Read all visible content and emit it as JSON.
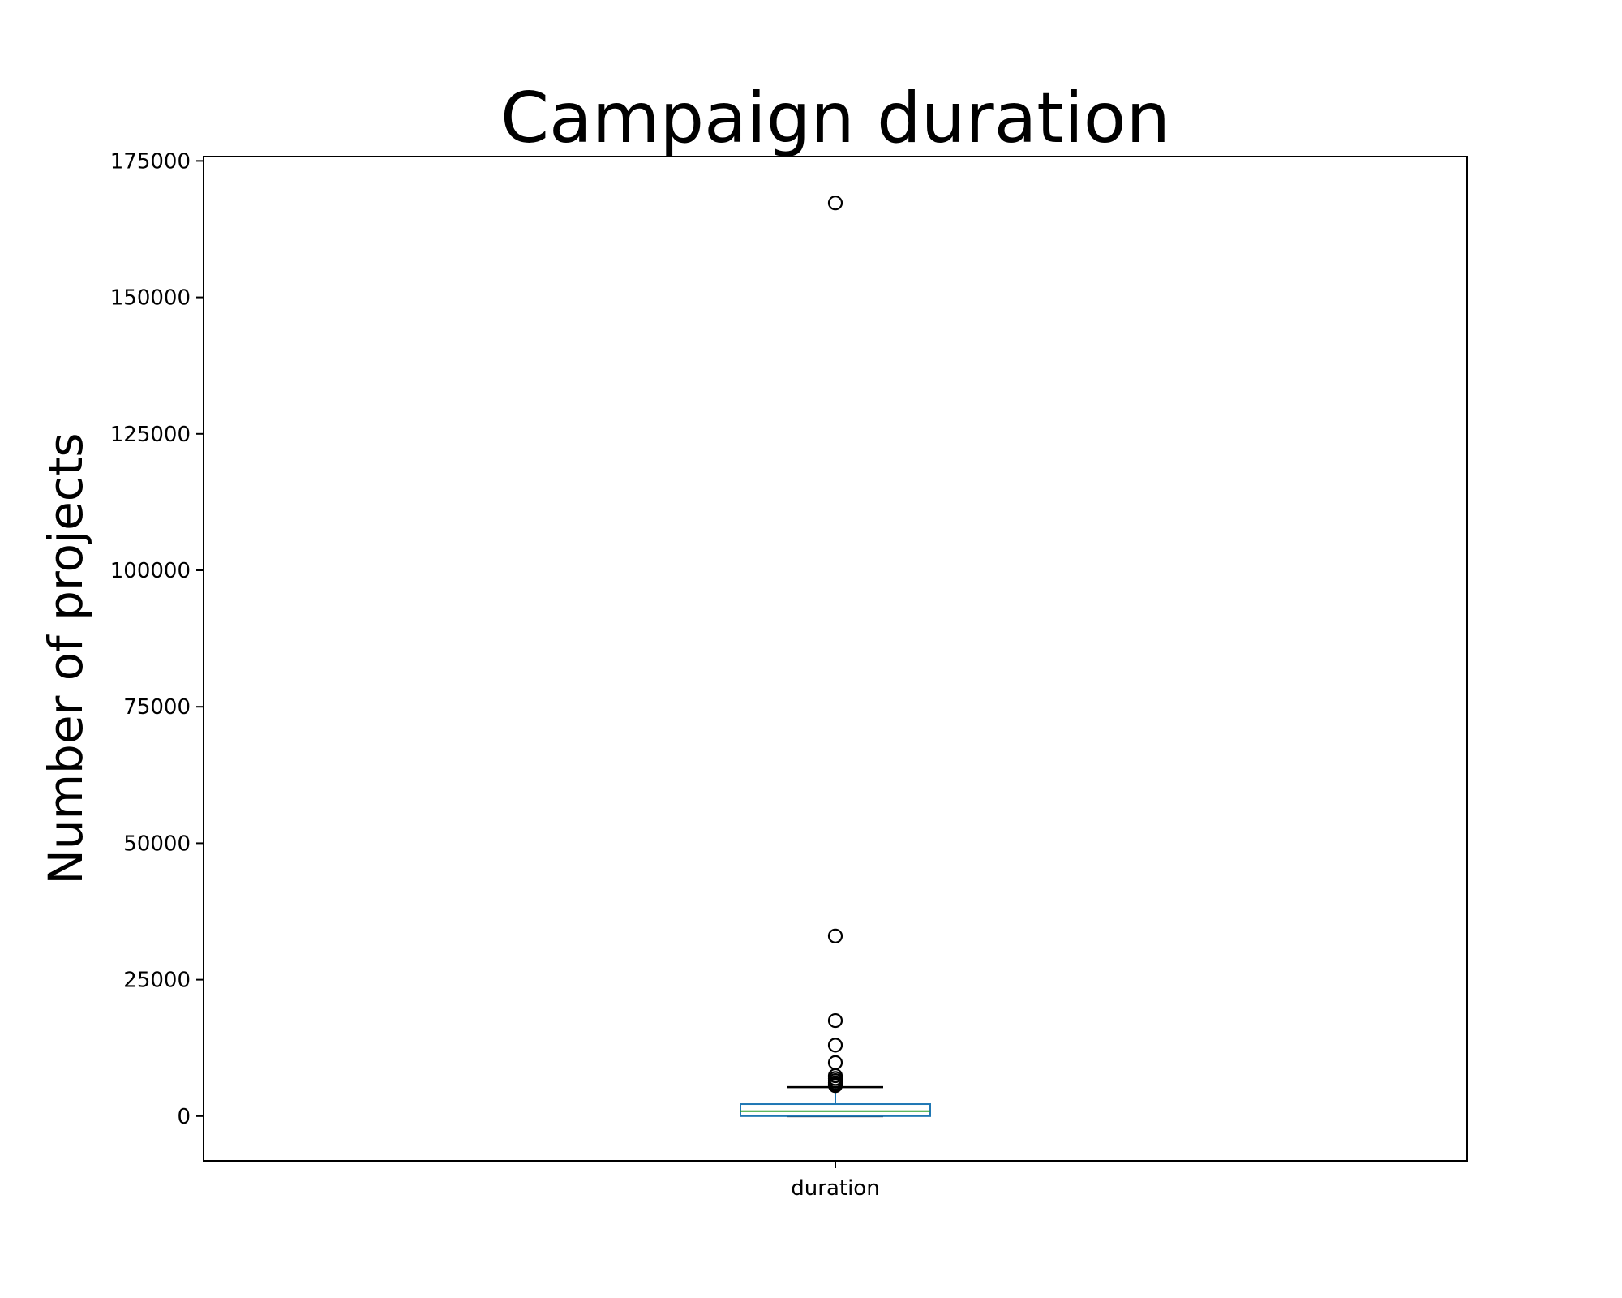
{
  "chart_data": {
    "type": "box",
    "title": "Campaign duration",
    "xlabel": "",
    "ylabel": "Number of projects",
    "categories": [
      "duration"
    ],
    "yticks": [
      0,
      25000,
      50000,
      75000,
      100000,
      125000,
      150000,
      175000
    ],
    "ytick_labels": [
      "0",
      "25000",
      "50000",
      "75000",
      "100000",
      "125000",
      "150000",
      "175000"
    ],
    "ylim": [
      -8200,
      175800
    ],
    "grid": false,
    "box": {
      "whisker_low": 0,
      "q1": 0,
      "median": 900,
      "q3": 2200,
      "whisker_high": 5300
    },
    "outliers": [
      167300,
      33000,
      17500,
      13000,
      9800,
      7400,
      6900,
      6500,
      6100,
      5800,
      5600
    ],
    "colors": {
      "box": "#1f77b4",
      "median": "#2ca02c",
      "whisker": "#1f77b4",
      "caps": "#000000",
      "outlier": "#000000"
    }
  }
}
